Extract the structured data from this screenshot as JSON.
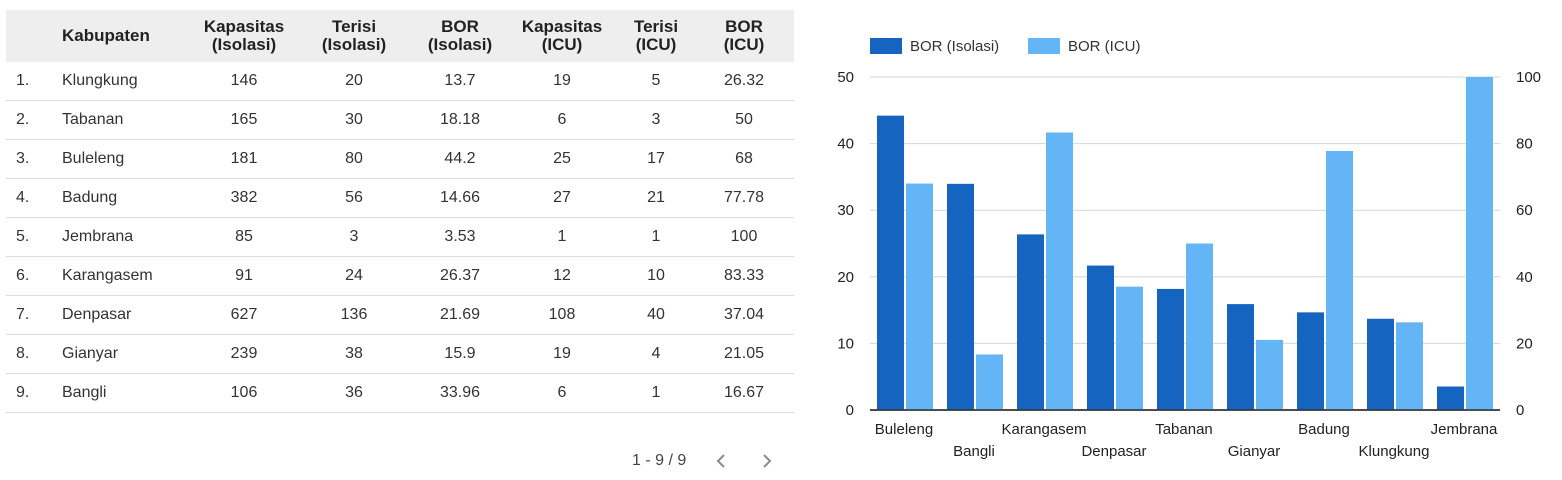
{
  "table": {
    "headers": [
      {
        "line1": "",
        "line2": ""
      },
      {
        "line1": "Kabupaten",
        "line2": ""
      },
      {
        "line1": "Kapasitas",
        "line2": "(Isolasi)"
      },
      {
        "line1": "Terisi",
        "line2": "(Isolasi)"
      },
      {
        "line1": "BOR",
        "line2": "(Isolasi)"
      },
      {
        "line1": "Kapasitas",
        "line2": "(ICU)"
      },
      {
        "line1": "Terisi",
        "line2": "(ICU)"
      },
      {
        "line1": "BOR",
        "line2": "(ICU)"
      }
    ],
    "rows": [
      [
        "1.",
        "Klungkung",
        "146",
        "20",
        "13.7",
        "19",
        "5",
        "26.32"
      ],
      [
        "2.",
        "Tabanan",
        "165",
        "30",
        "18.18",
        "6",
        "3",
        "50"
      ],
      [
        "3.",
        "Buleleng",
        "181",
        "80",
        "44.2",
        "25",
        "17",
        "68"
      ],
      [
        "4.",
        "Badung",
        "382",
        "56",
        "14.66",
        "27",
        "21",
        "77.78"
      ],
      [
        "5.",
        "Jembrana",
        "85",
        "3",
        "3.53",
        "1",
        "1",
        "100"
      ],
      [
        "6.",
        "Karangasem",
        "91",
        "24",
        "26.37",
        "12",
        "10",
        "83.33"
      ],
      [
        "7.",
        "Denpasar",
        "627",
        "136",
        "21.69",
        "108",
        "40",
        "37.04"
      ],
      [
        "8.",
        "Gianyar",
        "239",
        "38",
        "15.9",
        "19",
        "4",
        "21.05"
      ],
      [
        "9.",
        "Bangli",
        "106",
        "36",
        "33.96",
        "6",
        "1",
        "16.67"
      ]
    ]
  },
  "pagination": {
    "label": "1 - 9 / 9",
    "prev_icon": "chevron-left-icon",
    "next_icon": "chevron-right-icon"
  },
  "chart_data": {
    "type": "bar",
    "categories": [
      "Buleleng",
      "Bangli",
      "Karangasem",
      "Denpasar",
      "Tabanan",
      "Gianyar",
      "Badung",
      "Klungkung",
      "Jembrana"
    ],
    "series": [
      {
        "name": "BOR (Isolasi)",
        "axis": "left",
        "color": "#1565c0",
        "values": [
          44.2,
          33.96,
          26.37,
          21.69,
          18.18,
          15.9,
          14.66,
          13.7,
          3.53
        ]
      },
      {
        "name": "BOR (ICU)",
        "axis": "right",
        "color": "#64b5f6",
        "values": [
          68,
          16.67,
          83.33,
          37.04,
          50,
          21.05,
          77.78,
          26.32,
          100
        ]
      }
    ],
    "y_left": {
      "min": 0,
      "max": 50,
      "ticks": [
        0,
        10,
        20,
        30,
        40,
        50
      ]
    },
    "y_right": {
      "min": 0,
      "max": 100,
      "ticks": [
        0,
        20,
        40,
        60,
        80,
        100
      ]
    },
    "grid": true,
    "legend": "top-left"
  }
}
